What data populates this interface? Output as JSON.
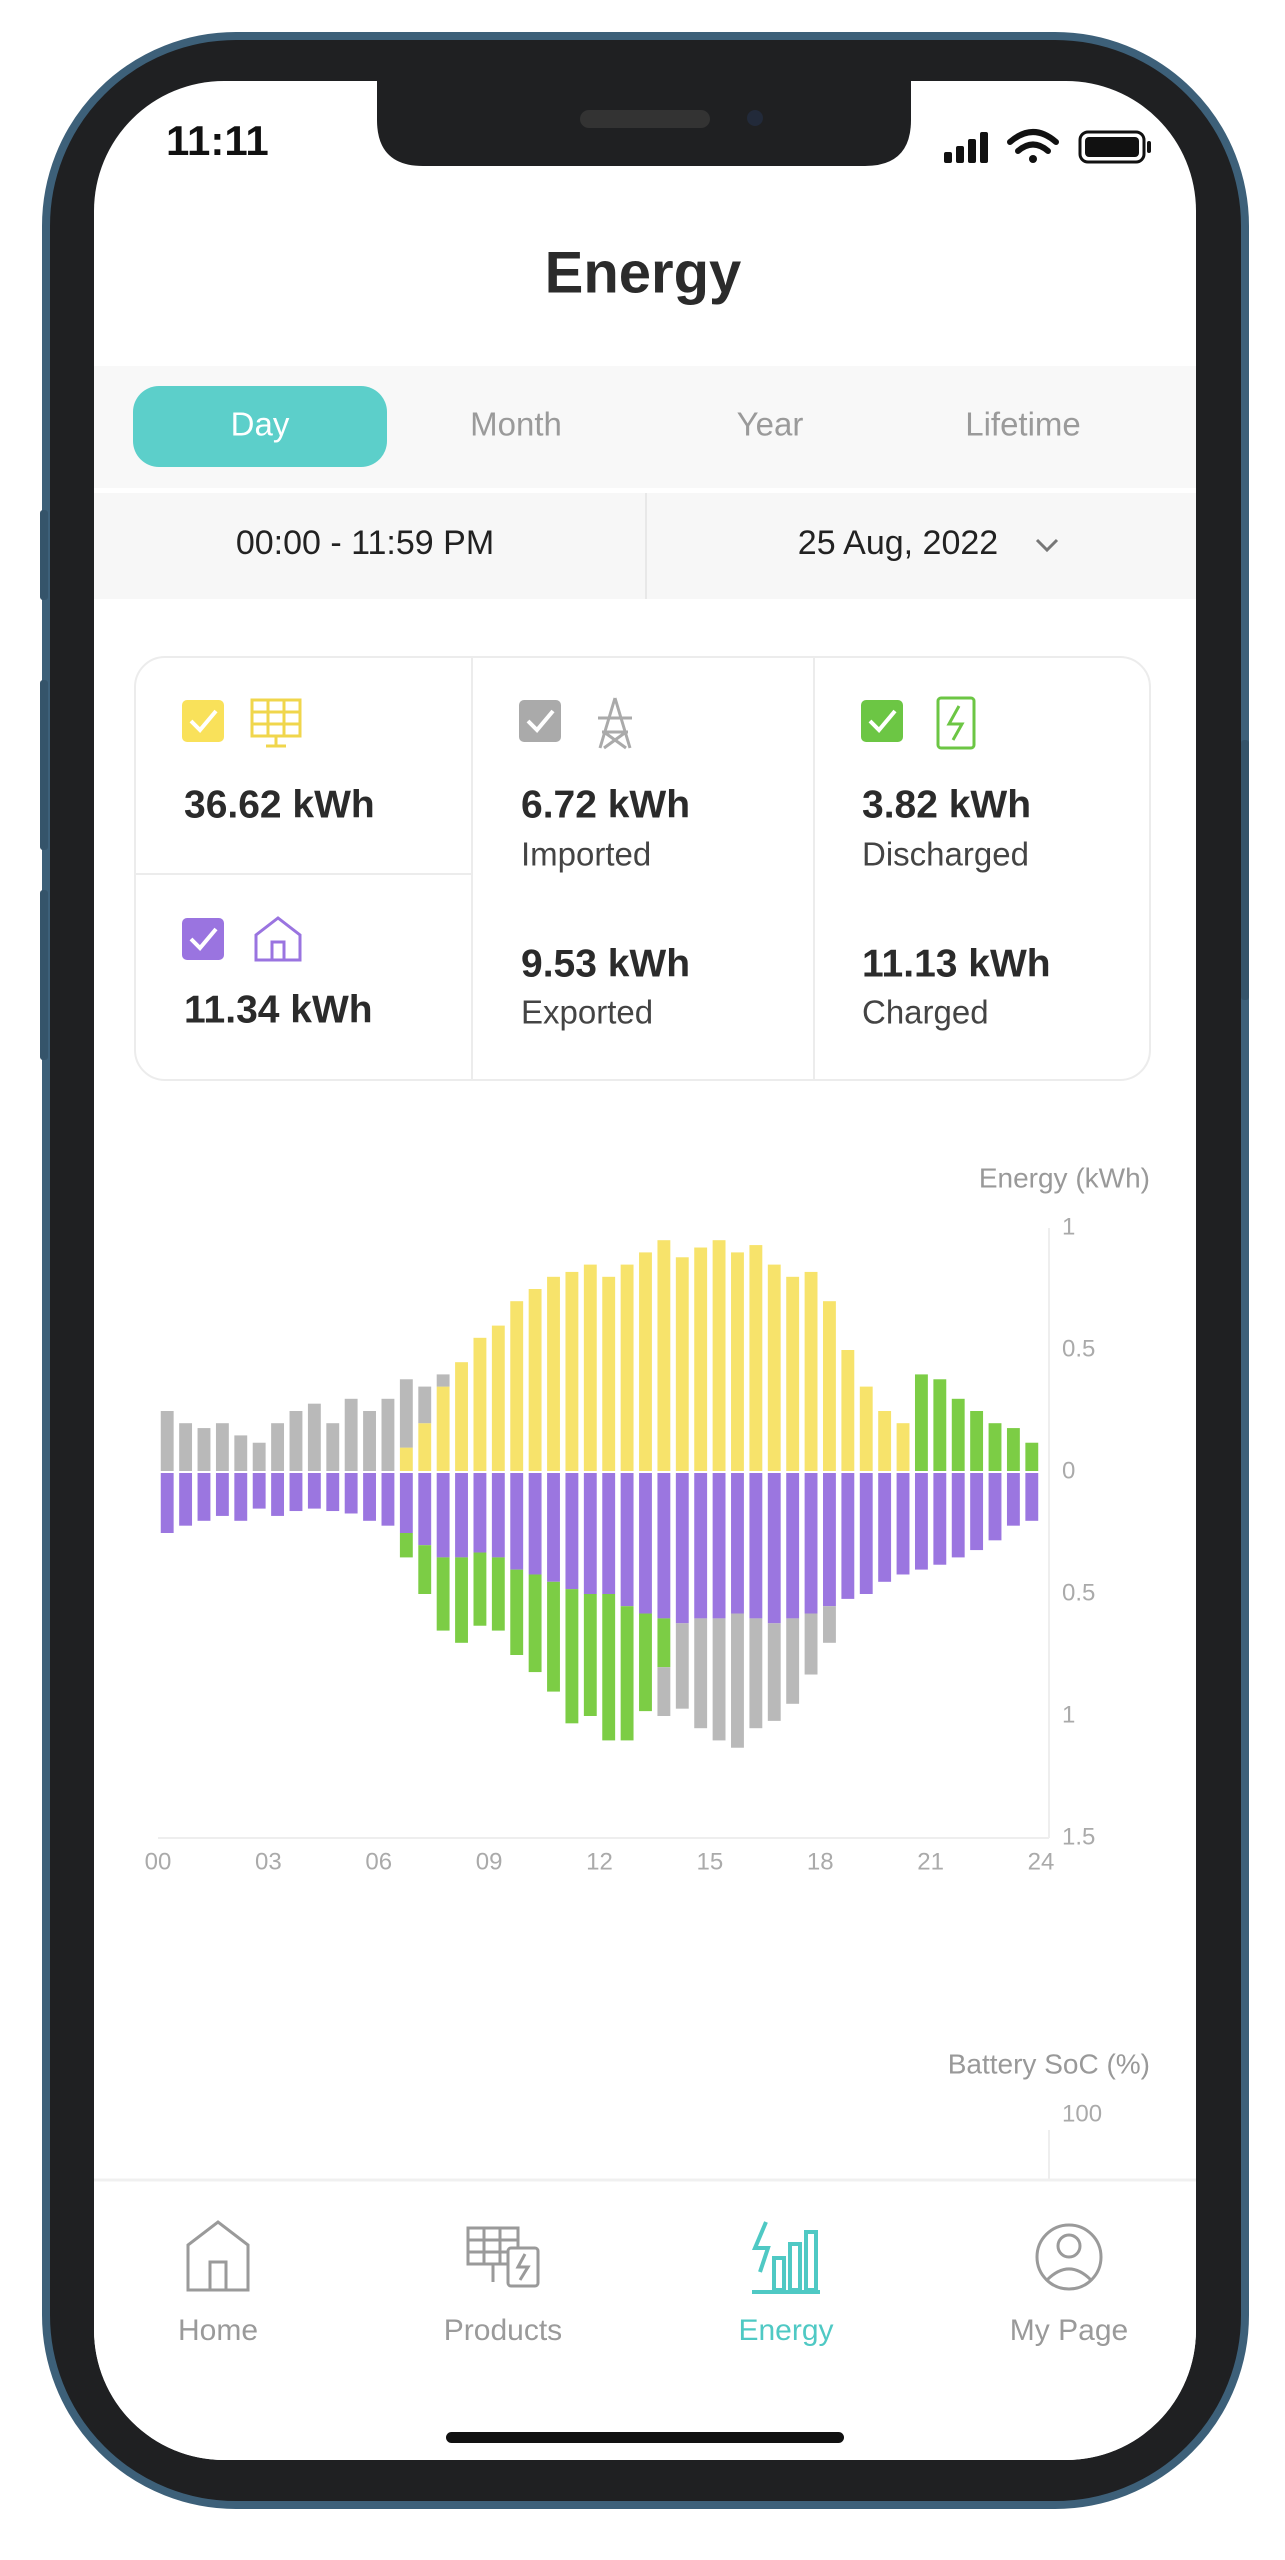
{
  "status_bar": {
    "time": "11:11"
  },
  "header": {
    "title": "Energy"
  },
  "tabs": [
    "Day",
    "Month",
    "Year",
    "Lifetime"
  ],
  "selected_tab": 0,
  "date_range": {
    "time_range": "00:00 - 11:59 PM",
    "date": "25 Aug, 2022"
  },
  "summary": {
    "solar": "36.62 kWh",
    "home": "11.34 kWh",
    "grid": [
      {
        "value": "6.72 kWh",
        "label": "Imported"
      },
      {
        "value": "9.53 kWh",
        "label": "Exported"
      }
    ],
    "battery": [
      {
        "value": "3.82 kWh",
        "label": "Discharged"
      },
      {
        "value": "11.13 kWh",
        "label": "Charged"
      }
    ]
  },
  "chart_data": [
    {
      "type": "bar",
      "y_label": "Energy (kWh)",
      "x": [
        0.25,
        0.75,
        1.25,
        1.75,
        2.25,
        2.75,
        3.25,
        3.75,
        4.25,
        4.75,
        5.25,
        5.75,
        6.25,
        6.75,
        7.25,
        7.75,
        8.25,
        8.75,
        9.25,
        9.75,
        10.25,
        10.75,
        11.25,
        11.75,
        12.25,
        12.75,
        13.25,
        13.75,
        14.25,
        14.75,
        15.25,
        15.75,
        16.25,
        16.75,
        17.25,
        17.75,
        18.25,
        18.75,
        19.25,
        19.75,
        20.25,
        20.75,
        21.25,
        21.75,
        22.25,
        22.75,
        23.25,
        23.75
      ],
      "xlim": [
        0,
        24
      ],
      "xticks": [
        {
          "value": 0,
          "label": "00"
        },
        {
          "value": 3,
          "label": "03"
        },
        {
          "value": 6,
          "label": "06"
        },
        {
          "value": 9,
          "label": "09"
        },
        12,
        15,
        18,
        21,
        24
      ],
      "ylim": [
        -1.5,
        1
      ],
      "yticks": [
        1,
        0.5,
        0,
        {
          "value": -0.5,
          "label": "0.5"
        },
        {
          "value": -1,
          "label": "1"
        },
        {
          "value": -1.5,
          "label": "1.5"
        }
      ],
      "stacked": true,
      "series": [
        {
          "color": "#f7e36b",
          "values": [
            0,
            0,
            0,
            0,
            0,
            0,
            0,
            0,
            0,
            0,
            0,
            0,
            0,
            0.1,
            0.2,
            0.35,
            0.45,
            0.55,
            0.6,
            0.7,
            0.75,
            0.8,
            0.82,
            0.85,
            0.8,
            0.85,
            0.9,
            0.95,
            0.88,
            0.92,
            0.95,
            0.9,
            0.93,
            0.85,
            0.8,
            0.82,
            0.7,
            0.5,
            0.35,
            0.25,
            0.2,
            0,
            0,
            0,
            0,
            0,
            0,
            0
          ]
        },
        {
          "color": "#b9b9b9",
          "values": [
            0.25,
            0.2,
            0.18,
            0.2,
            0.15,
            0.12,
            0.2,
            0.25,
            0.28,
            0.2,
            0.3,
            0.25,
            0.3,
            0.28,
            0.15,
            0.05,
            0,
            0,
            0,
            0,
            0,
            0,
            0,
            0,
            0,
            0,
            0,
            0,
            0,
            0,
            0,
            0,
            0,
            0,
            0,
            0,
            0,
            0,
            0,
            0,
            0,
            0,
            0,
            0,
            0,
            0,
            0,
            0
          ]
        },
        {
          "color": "#7ccd45",
          "values": [
            0,
            0,
            0,
            0,
            0,
            0,
            0,
            0,
            0,
            0,
            0,
            0,
            0,
            0,
            0,
            0,
            0,
            0,
            0,
            0,
            0,
            0,
            0,
            0,
            0,
            0,
            0,
            0,
            0,
            0,
            0,
            0,
            0,
            0,
            0,
            0,
            0,
            0,
            0,
            0,
            0,
            0.4,
            0.38,
            0.3,
            0.25,
            0.2,
            0.18,
            0.12
          ]
        },
        {
          "color": "#9b76e0",
          "values": [
            -0.25,
            -0.22,
            -0.2,
            -0.18,
            -0.2,
            -0.15,
            -0.18,
            -0.16,
            -0.15,
            -0.16,
            -0.17,
            -0.2,
            -0.22,
            -0.25,
            -0.3,
            -0.35,
            -0.35,
            -0.33,
            -0.35,
            -0.4,
            -0.42,
            -0.45,
            -0.48,
            -0.5,
            -0.5,
            -0.55,
            -0.58,
            -0.6,
            -0.62,
            -0.6,
            -0.6,
            -0.58,
            -0.6,
            -0.62,
            -0.6,
            -0.58,
            -0.55,
            -0.52,
            -0.5,
            -0.45,
            -0.42,
            -0.4,
            -0.38,
            -0.35,
            -0.32,
            -0.28,
            -0.22,
            -0.2
          ]
        },
        {
          "color": "#7ccd45",
          "values": [
            0,
            0,
            0,
            0,
            0,
            0,
            0,
            0,
            0,
            0,
            0,
            0,
            0,
            -0.1,
            -0.2,
            -0.3,
            -0.35,
            -0.3,
            -0.3,
            -0.35,
            -0.4,
            -0.45,
            -0.55,
            -0.5,
            -0.6,
            -0.55,
            -0.4,
            -0.2,
            0,
            0,
            0,
            0,
            0,
            0,
            0,
            0,
            0,
            0,
            0,
            0,
            0,
            0,
            0,
            0,
            0,
            0,
            0,
            0
          ]
        },
        {
          "color": "#b9b9b9",
          "values": [
            0,
            0,
            0,
            0,
            0,
            0,
            0,
            0,
            0,
            0,
            0,
            0,
            0,
            0,
            0,
            0,
            0,
            0,
            0,
            0,
            0,
            0,
            0,
            0,
            0,
            0,
            0,
            -0.2,
            -0.35,
            -0.45,
            -0.5,
            -0.55,
            -0.45,
            -0.4,
            -0.35,
            -0.25,
            -0.15,
            0,
            0,
            0,
            0,
            0,
            0,
            0,
            0,
            0,
            0,
            0
          ]
        }
      ]
    },
    {
      "type": "line",
      "y_label": "Battery SoC (%)",
      "yticks": [
        100
      ]
    }
  ],
  "nav": {
    "items": [
      "Home",
      "Products",
      "Energy",
      "My Page"
    ],
    "active": 2
  }
}
